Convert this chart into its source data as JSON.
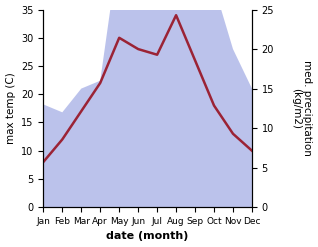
{
  "months": [
    "Jan",
    "Feb",
    "Mar",
    "Apr",
    "May",
    "Jun",
    "Jul",
    "Aug",
    "Sep",
    "Oct",
    "Nov",
    "Dec"
  ],
  "temperature": [
    8,
    12,
    17,
    22,
    30,
    28,
    27,
    34,
    26,
    18,
    13,
    10
  ],
  "precipitation": [
    13,
    12,
    15,
    16,
    33,
    47,
    35,
    28,
    38,
    28,
    20,
    15
  ],
  "temp_ylim": [
    0,
    35
  ],
  "precip_ylim": [
    0,
    25
  ],
  "temp_color": "#9b2335",
  "precip_fill_color": "#b0b8e8",
  "precip_fill_alpha": 0.85,
  "ylabel_left": "max temp (C)",
  "ylabel_right": "med. precipitation\n(kg/m2)",
  "xlabel": "date (month)",
  "yticks_left": [
    0,
    5,
    10,
    15,
    20,
    25,
    30,
    35
  ],
  "yticks_right": [
    0,
    5,
    10,
    15,
    20,
    25
  ],
  "background_color": "#ffffff",
  "temp_linewidth": 1.8,
  "xlabel_fontsize": 8,
  "ylabel_fontsize": 7.5
}
